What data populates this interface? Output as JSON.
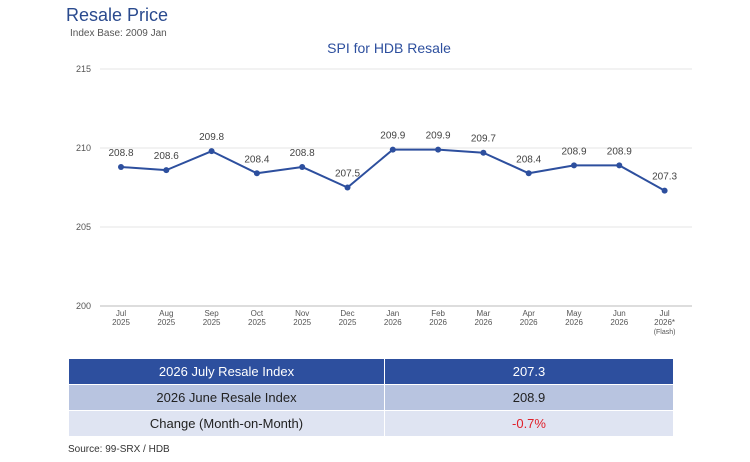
{
  "header": {
    "title": "Resale Price",
    "subtitle": "Index Base: 2009 Jan"
  },
  "chart_data": {
    "type": "line",
    "title": "SPI for HDB Resale",
    "xlabel": "",
    "ylabel": "",
    "ylim": [
      200,
      215
    ],
    "yticks": [
      200,
      205,
      210,
      215
    ],
    "grid": true,
    "categories": [
      [
        "Jul",
        "2025"
      ],
      [
        "Aug",
        "2025"
      ],
      [
        "Sep",
        "2025"
      ],
      [
        "Oct",
        "2025"
      ],
      [
        "Nov",
        "2025"
      ],
      [
        "Dec",
        "2025"
      ],
      [
        "Jan",
        "2026"
      ],
      [
        "Feb",
        "2026"
      ],
      [
        "Mar",
        "2026"
      ],
      [
        "Apr",
        "2026"
      ],
      [
        "May",
        "2026"
      ],
      [
        "Jun",
        "2026"
      ],
      [
        "Jul",
        "2026*",
        "(Flash)"
      ]
    ],
    "series": [
      {
        "values": [
          208.8,
          208.6,
          209.8,
          208.4,
          208.8,
          207.5,
          209.9,
          209.9,
          209.7,
          208.4,
          208.9,
          208.9,
          207.3
        ],
        "color": "#2d4f9e"
      }
    ]
  },
  "summary_table": [
    {
      "label": "2026 July Resale Index",
      "value": "207.3"
    },
    {
      "label": "2026 June Resale Index",
      "value": "208.9"
    },
    {
      "label": "Change (Month-on-Month)",
      "value": "-0.7%"
    }
  ],
  "colors": {
    "line": "#2d4f9e",
    "header_row": "#2d4f9e",
    "negative_change": "#e0202a"
  },
  "source": "Source: 99-SRX / HDB"
}
